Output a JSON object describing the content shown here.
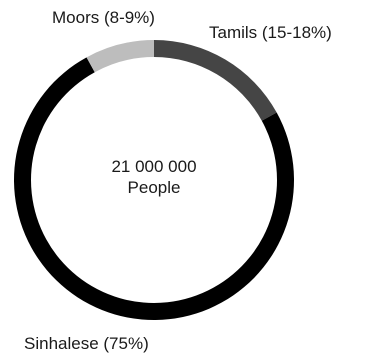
{
  "chart_data": {
    "type": "pie",
    "style": "donut",
    "title": "",
    "center_text": {
      "line1": "21 000 000",
      "line2": "People"
    },
    "slices": [
      {
        "label": "Tamils (15-18%)",
        "value": 17,
        "color": "#454545"
      },
      {
        "label": "Sinhalese (75%)",
        "value": 75,
        "color": "#000000"
      },
      {
        "label": "Moors (8-9%)",
        "value": 8,
        "color": "#bdbdbd"
      }
    ],
    "start_angle_deg": 0,
    "direction": "clockwise",
    "legend": "none"
  }
}
